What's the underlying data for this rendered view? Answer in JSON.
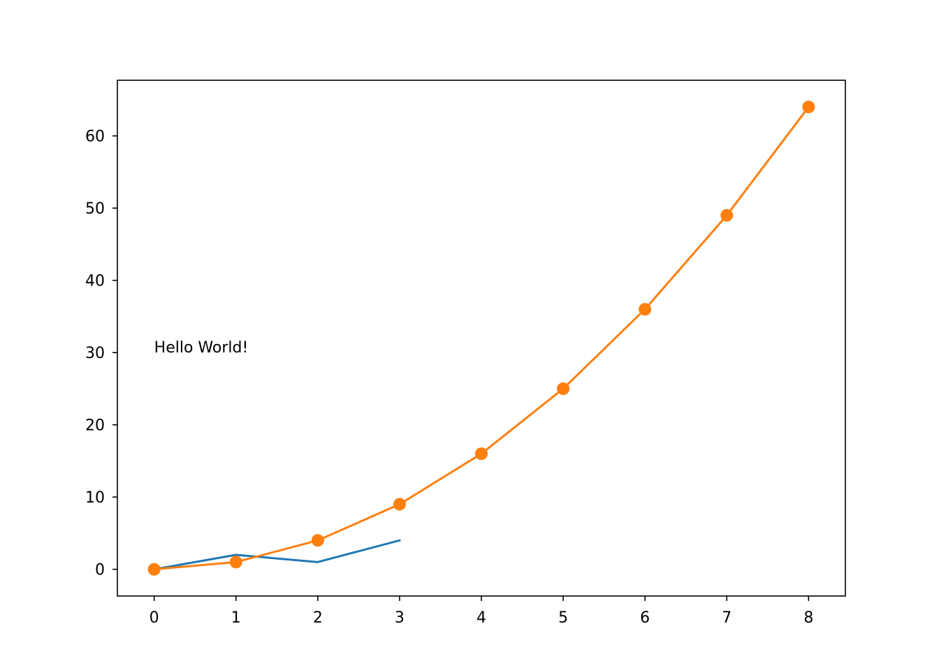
{
  "chart_data": {
    "type": "line",
    "title": "",
    "xlabel": "",
    "ylabel": "",
    "xlim": [
      -0.45,
      8.45
    ],
    "ylim": [
      -3.7,
      67.7
    ],
    "xticks": [
      0,
      1,
      2,
      3,
      4,
      5,
      6,
      7,
      8
    ],
    "yticks": [
      0,
      10,
      20,
      30,
      40,
      50,
      60
    ],
    "grid": false,
    "legend": "none",
    "series": [
      {
        "color": "#1f77b4",
        "marker": "none",
        "x": [
          0,
          1,
          2,
          3
        ],
        "y": [
          0,
          2,
          1,
          4
        ]
      },
      {
        "color": "#ff7f0e",
        "marker": "circle",
        "x": [
          0,
          1,
          2,
          3,
          4,
          5,
          6,
          7,
          8
        ],
        "y": [
          0,
          1,
          4,
          9,
          16,
          25,
          36,
          49,
          64
        ]
      }
    ],
    "annotations": [
      {
        "text": "Hello World!",
        "x": 0,
        "y": 30
      }
    ]
  }
}
